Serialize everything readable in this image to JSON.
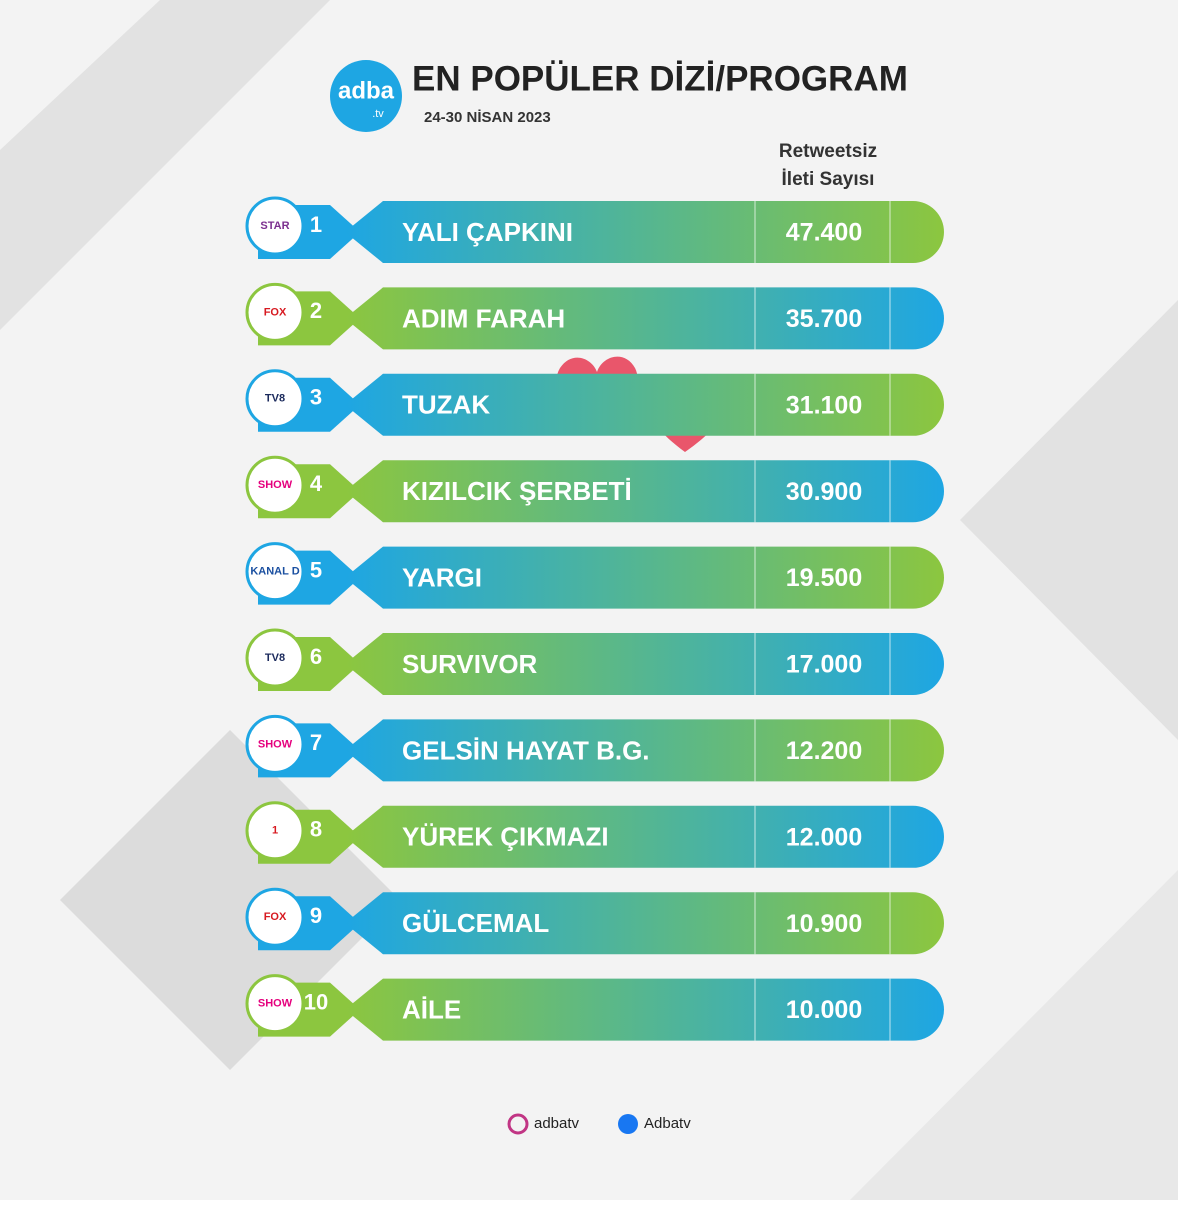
{
  "header": {
    "logo": "adba",
    "logo_sub": ".tv",
    "title": "EN POPÜLER DİZİ/PROGRAM",
    "date": "24-30 NİSAN 2023"
  },
  "column_header": [
    "Retweetsiz",
    "İleti Sayısı"
  ],
  "rows": [
    {
      "channel": "STAR",
      "rank": "1",
      "title": "YALI ÇAPKINI",
      "count": "47.400"
    },
    {
      "channel": "FOX",
      "rank": "2",
      "title": "ADIM FARAH",
      "count": "35.700"
    },
    {
      "channel": "TV8",
      "rank": "3",
      "title": "TUZAK",
      "count": "31.100"
    },
    {
      "channel": "SHOW",
      "rank": "4",
      "title": "KIZILCIK ŞERBETİ",
      "count": "30.900"
    },
    {
      "channel": "KANAL D",
      "rank": "5",
      "title": "YARGI",
      "count": "19.500"
    },
    {
      "channel": "TV8",
      "rank": "6",
      "title": "SURVIVOR",
      "count": "17.000"
    },
    {
      "channel": "SHOW",
      "rank": "7",
      "title": "GELSİN HAYAT B.G.",
      "count": "12.200"
    },
    {
      "channel": "1",
      "rank": "8",
      "title": "YÜREK ÇIKMAZI",
      "count": "12.000"
    },
    {
      "channel": "FOX",
      "rank": "9",
      "title": "GÜLCEMAL",
      "count": "10.900"
    },
    {
      "channel": "SHOW",
      "rank": "10",
      "title": "AİLE",
      "count": "10.000"
    }
  ],
  "footer": {
    "instagram": "adbatv",
    "facebook": "Adbatv"
  }
}
